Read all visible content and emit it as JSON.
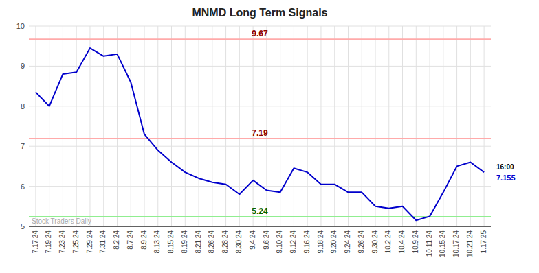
{
  "chart_data": {
    "type": "line",
    "title": "MNMD Long Term Signals",
    "categories": [
      "7.17.24",
      "7.19.24",
      "7.23.24",
      "7.25.24",
      "7.29.24",
      "7.31.24",
      "8.2.24",
      "8.7.24",
      "8.9.24",
      "8.13.24",
      "8.15.24",
      "8.19.24",
      "8.21.24",
      "8.26.24",
      "8.28.24",
      "8.30.24",
      "9.4.24",
      "9.6.24",
      "9.10.24",
      "9.12.24",
      "9.16.24",
      "9.18.24",
      "9.20.24",
      "9.24.24",
      "9.26.24",
      "9.30.24",
      "10.2.24",
      "10.4.24",
      "10.9.24",
      "10.11.24",
      "10.15.24",
      "10.17.24",
      "10.21.24",
      "1.17.25"
    ],
    "series": [
      {
        "color": "#0000cc",
        "values": [
          8.35,
          8.0,
          8.8,
          8.85,
          9.45,
          9.25,
          9.3,
          8.6,
          7.3,
          6.9,
          6.6,
          6.35,
          6.2,
          6.1,
          6.05,
          5.8,
          6.15,
          5.9,
          5.85,
          6.45,
          6.35,
          6.05,
          6.05,
          5.85,
          5.85,
          5.5,
          5.45,
          5.5,
          5.15,
          5.25,
          5.85,
          6.5,
          6.6,
          6.35
        ]
      }
    ],
    "reference_lines": [
      {
        "value": 9.67,
        "color": "#ffaaaa",
        "label_color": "#8b0000"
      },
      {
        "value": 7.19,
        "color": "#ffaaaa",
        "label_color": "#8b0000"
      },
      {
        "value": 5.24,
        "color": "#90ee90",
        "label_color": "#006400"
      }
    ],
    "annotations": [
      {
        "text": "16:00"
      },
      {
        "text": "7.155",
        "color": "#0000cc"
      }
    ],
    "watermark": "Stock Traders Daily",
    "watermark_color": "#aaaaaa",
    "ylim": [
      5.0,
      10.0
    ],
    "yticks": [
      5,
      6,
      7,
      8,
      9,
      10
    ],
    "grid": true
  }
}
